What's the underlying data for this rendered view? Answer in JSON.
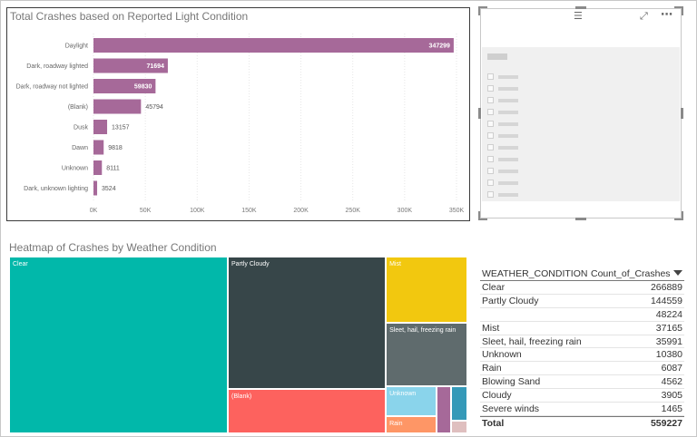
{
  "bar_chart": {
    "title": "Total Crashes based on Reported Light Condition",
    "color": "#a66999"
  },
  "chart_data": [
    {
      "type": "bar",
      "orientation": "horizontal",
      "title": "Total Crashes based on Reported Light Condition",
      "categories": [
        "Daylight",
        "Dark, roadway lighted",
        "Dark, roadway not lighted",
        "(Blank)",
        "Dusk",
        "Dawn",
        "Unknown",
        "Dark, unknown lighting"
      ],
      "values": [
        347299,
        71694,
        59830,
        45794,
        13157,
        9818,
        8111,
        3524
      ],
      "value_labels": [
        "347299",
        "71694",
        "59830",
        "45794",
        "13157",
        "9818",
        "8111",
        "3524"
      ],
      "xlim": [
        0,
        350000
      ],
      "x_ticks": [
        0,
        50000,
        100000,
        150000,
        200000,
        250000,
        300000,
        350000
      ],
      "x_tick_labels": [
        "0K",
        "50K",
        "100K",
        "150K",
        "200K",
        "250K",
        "300K",
        "350K"
      ],
      "grid": true
    },
    {
      "type": "treemap",
      "title": "Heatmap of Crashes by Weather Condition",
      "labels": [
        "Clear",
        "Partly Cloudy",
        "(Blank)",
        "Mist",
        "Sleet, hail, freezing rain",
        "Unknown",
        "Rain",
        "Blowing Sand",
        "Cloudy",
        "Severe winds"
      ],
      "values": [
        266889,
        144559,
        48224,
        37165,
        35991,
        10380,
        6087,
        4562,
        3905,
        1465
      ],
      "colors": [
        "#01b8aa",
        "#374649",
        "#fd625e",
        "#f2c80f",
        "#5f6b6d",
        "#8ad4eb",
        "#fe9666",
        "#a66999",
        "#3599b8",
        "#dfbfbf"
      ]
    }
  ],
  "treemap": {
    "title": "Heatmap of Crashes by Weather Condition"
  },
  "table": {
    "col1": "WEATHER_CONDITION",
    "col2": "Count_of_Crashes",
    "rows": [
      {
        "c": "Clear",
        "v": "266889"
      },
      {
        "c": "Partly Cloudy",
        "v": "144559"
      },
      {
        "c": "",
        "v": "48224"
      },
      {
        "c": "Mist",
        "v": "37165"
      },
      {
        "c": "Sleet, hail, freezing rain",
        "v": "35991"
      },
      {
        "c": "Unknown",
        "v": "10380"
      },
      {
        "c": "Rain",
        "v": "6087"
      },
      {
        "c": "Blowing Sand",
        "v": "4562"
      },
      {
        "c": "Cloudy",
        "v": "3905"
      },
      {
        "c": "Severe winds",
        "v": "1465"
      }
    ],
    "total_label": "Total",
    "total_value": "559227"
  },
  "slicer": {
    "icons": [
      "drag-handle-icon",
      "focus-mode-icon",
      "more-options-icon"
    ]
  }
}
